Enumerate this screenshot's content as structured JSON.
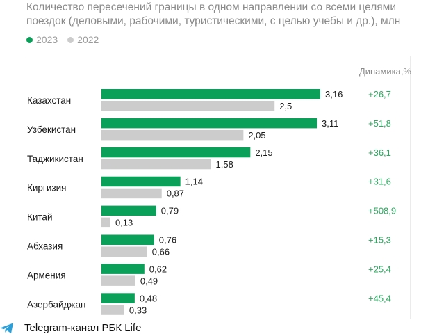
{
  "chart_data": {
    "type": "bar",
    "orientation": "horizontal",
    "title": "Количество пересечений границы в одном направлении со всеми целями поездок (деловыми, рабочими, туристическими, с целью учебы и др.), млн",
    "categories": [
      "Казахстан",
      "Узбекистан",
      "Таджикистан",
      "Киргизия",
      "Китай",
      "Абхазия",
      "Армения",
      "Азербайджан"
    ],
    "series": [
      {
        "name": "2023",
        "color": "#0aa05a",
        "values": [
          3.16,
          3.11,
          2.15,
          1.14,
          0.79,
          0.76,
          0.62,
          0.48
        ],
        "labels": [
          "3,16",
          "3,11",
          "2,15",
          "1,14",
          "0,79",
          "0,76",
          "0,62",
          "0,48"
        ]
      },
      {
        "name": "2022",
        "color": "#cccccc",
        "values": [
          2.5,
          2.05,
          1.58,
          0.87,
          0.13,
          0.66,
          0.49,
          0.33
        ],
        "labels": [
          "2,5",
          "2,05",
          "1,58",
          "0,87",
          "0,13",
          "0,66",
          "0,49",
          "0,33"
        ]
      }
    ],
    "dynamics_header": "Динамика,%",
    "dynamics": [
      "+26,7",
      "+51,8",
      "+36,1",
      "+31,6",
      "+508,9",
      "+15,3",
      "+25,4",
      "+45,4"
    ],
    "xlim": [
      0,
      3.16
    ],
    "grid": false,
    "legend_position": "top-left"
  },
  "colors": {
    "accent": "#0aa05a",
    "previous": "#cccccc",
    "dynamics_text": "#2ca860",
    "telegram": "#2a9fd8"
  },
  "footer": {
    "icon": "telegram-icon",
    "text": "Telegram-канал РБК Life"
  }
}
